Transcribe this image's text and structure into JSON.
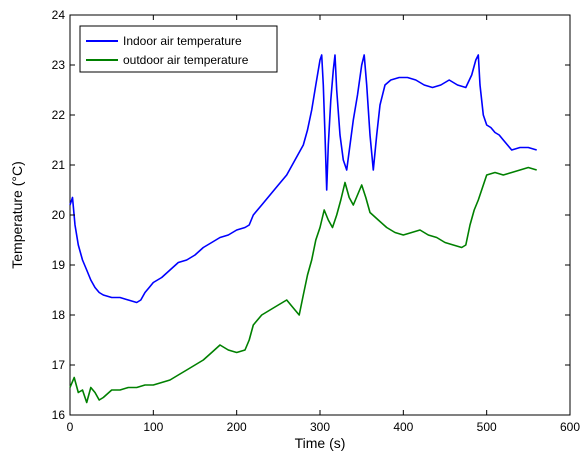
{
  "chart_data": {
    "type": "line",
    "title": "",
    "xlabel": "Time (s)",
    "ylabel": "Temperature (°C)",
    "xlim": [
      0,
      600
    ],
    "ylim": [
      16,
      24
    ],
    "xticks": [
      0,
      100,
      200,
      300,
      400,
      500,
      600
    ],
    "yticks": [
      16,
      17,
      18,
      19,
      20,
      21,
      22,
      23,
      24
    ],
    "grid": false,
    "legend_position": "top-left",
    "series": [
      {
        "name": "Indoor air temperature",
        "color": "#0000ff",
        "points": [
          [
            0,
            20.2
          ],
          [
            3,
            20.35
          ],
          [
            6,
            19.8
          ],
          [
            10,
            19.4
          ],
          [
            15,
            19.1
          ],
          [
            20,
            18.9
          ],
          [
            25,
            18.7
          ],
          [
            30,
            18.55
          ],
          [
            35,
            18.45
          ],
          [
            40,
            18.4
          ],
          [
            50,
            18.35
          ],
          [
            60,
            18.35
          ],
          [
            70,
            18.3
          ],
          [
            80,
            18.25
          ],
          [
            85,
            18.3
          ],
          [
            90,
            18.45
          ],
          [
            95,
            18.55
          ],
          [
            100,
            18.65
          ],
          [
            110,
            18.75
          ],
          [
            120,
            18.9
          ],
          [
            130,
            19.05
          ],
          [
            140,
            19.1
          ],
          [
            150,
            19.2
          ],
          [
            160,
            19.35
          ],
          [
            170,
            19.45
          ],
          [
            180,
            19.55
          ],
          [
            190,
            19.6
          ],
          [
            200,
            19.7
          ],
          [
            210,
            19.75
          ],
          [
            215,
            19.8
          ],
          [
            220,
            20.0
          ],
          [
            230,
            20.2
          ],
          [
            240,
            20.4
          ],
          [
            250,
            20.6
          ],
          [
            260,
            20.8
          ],
          [
            270,
            21.1
          ],
          [
            280,
            21.4
          ],
          [
            285,
            21.7
          ],
          [
            290,
            22.1
          ],
          [
            295,
            22.6
          ],
          [
            300,
            23.1
          ],
          [
            302,
            23.2
          ],
          [
            304,
            22.6
          ],
          [
            306,
            21.6
          ],
          [
            308,
            20.5
          ],
          [
            310,
            21.4
          ],
          [
            313,
            22.3
          ],
          [
            316,
            22.9
          ],
          [
            318,
            23.2
          ],
          [
            320,
            22.5
          ],
          [
            324,
            21.6
          ],
          [
            328,
            21.1
          ],
          [
            332,
            20.9
          ],
          [
            336,
            21.4
          ],
          [
            340,
            21.9
          ],
          [
            345,
            22.4
          ],
          [
            350,
            23.0
          ],
          [
            353,
            23.2
          ],
          [
            356,
            22.6
          ],
          [
            360,
            21.6
          ],
          [
            364,
            20.9
          ],
          [
            368,
            21.6
          ],
          [
            372,
            22.2
          ],
          [
            378,
            22.6
          ],
          [
            385,
            22.7
          ],
          [
            395,
            22.75
          ],
          [
            405,
            22.75
          ],
          [
            415,
            22.7
          ],
          [
            425,
            22.6
          ],
          [
            435,
            22.55
          ],
          [
            445,
            22.6
          ],
          [
            455,
            22.7
          ],
          [
            465,
            22.6
          ],
          [
            475,
            22.55
          ],
          [
            482,
            22.8
          ],
          [
            487,
            23.1
          ],
          [
            490,
            23.2
          ],
          [
            492,
            22.6
          ],
          [
            496,
            22.0
          ],
          [
            500,
            21.8
          ],
          [
            505,
            21.75
          ],
          [
            510,
            21.65
          ],
          [
            515,
            21.6
          ],
          [
            520,
            21.5
          ],
          [
            525,
            21.4
          ],
          [
            530,
            21.3
          ],
          [
            540,
            21.35
          ],
          [
            550,
            21.35
          ],
          [
            560,
            21.3
          ]
        ]
      },
      {
        "name": "outdoor air temperature",
        "color": "#008000",
        "points": [
          [
            0,
            16.55
          ],
          [
            5,
            16.75
          ],
          [
            10,
            16.45
          ],
          [
            15,
            16.5
          ],
          [
            20,
            16.25
          ],
          [
            25,
            16.55
          ],
          [
            30,
            16.45
          ],
          [
            35,
            16.3
          ],
          [
            40,
            16.35
          ],
          [
            50,
            16.5
          ],
          [
            60,
            16.5
          ],
          [
            70,
            16.55
          ],
          [
            80,
            16.55
          ],
          [
            90,
            16.6
          ],
          [
            100,
            16.6
          ],
          [
            110,
            16.65
          ],
          [
            120,
            16.7
          ],
          [
            130,
            16.8
          ],
          [
            140,
            16.9
          ],
          [
            150,
            17.0
          ],
          [
            160,
            17.1
          ],
          [
            170,
            17.25
          ],
          [
            180,
            17.4
          ],
          [
            190,
            17.3
          ],
          [
            200,
            17.25
          ],
          [
            210,
            17.3
          ],
          [
            215,
            17.5
          ],
          [
            220,
            17.8
          ],
          [
            230,
            18.0
          ],
          [
            240,
            18.1
          ],
          [
            250,
            18.2
          ],
          [
            260,
            18.3
          ],
          [
            270,
            18.1
          ],
          [
            275,
            18.0
          ],
          [
            280,
            18.4
          ],
          [
            285,
            18.8
          ],
          [
            290,
            19.1
          ],
          [
            295,
            19.5
          ],
          [
            300,
            19.75
          ],
          [
            305,
            20.1
          ],
          [
            310,
            19.9
          ],
          [
            315,
            19.75
          ],
          [
            320,
            20.0
          ],
          [
            325,
            20.3
          ],
          [
            330,
            20.65
          ],
          [
            335,
            20.35
          ],
          [
            340,
            20.2
          ],
          [
            345,
            20.4
          ],
          [
            350,
            20.6
          ],
          [
            355,
            20.35
          ],
          [
            360,
            20.05
          ],
          [
            370,
            19.9
          ],
          [
            380,
            19.75
          ],
          [
            390,
            19.65
          ],
          [
            400,
            19.6
          ],
          [
            410,
            19.65
          ],
          [
            420,
            19.7
          ],
          [
            430,
            19.6
          ],
          [
            440,
            19.55
          ],
          [
            450,
            19.45
          ],
          [
            460,
            19.4
          ],
          [
            470,
            19.35
          ],
          [
            475,
            19.4
          ],
          [
            480,
            19.8
          ],
          [
            485,
            20.1
          ],
          [
            490,
            20.3
          ],
          [
            495,
            20.55
          ],
          [
            500,
            20.8
          ],
          [
            510,
            20.85
          ],
          [
            520,
            20.8
          ],
          [
            530,
            20.85
          ],
          [
            540,
            20.9
          ],
          [
            550,
            20.95
          ],
          [
            560,
            20.9
          ]
        ]
      }
    ]
  }
}
